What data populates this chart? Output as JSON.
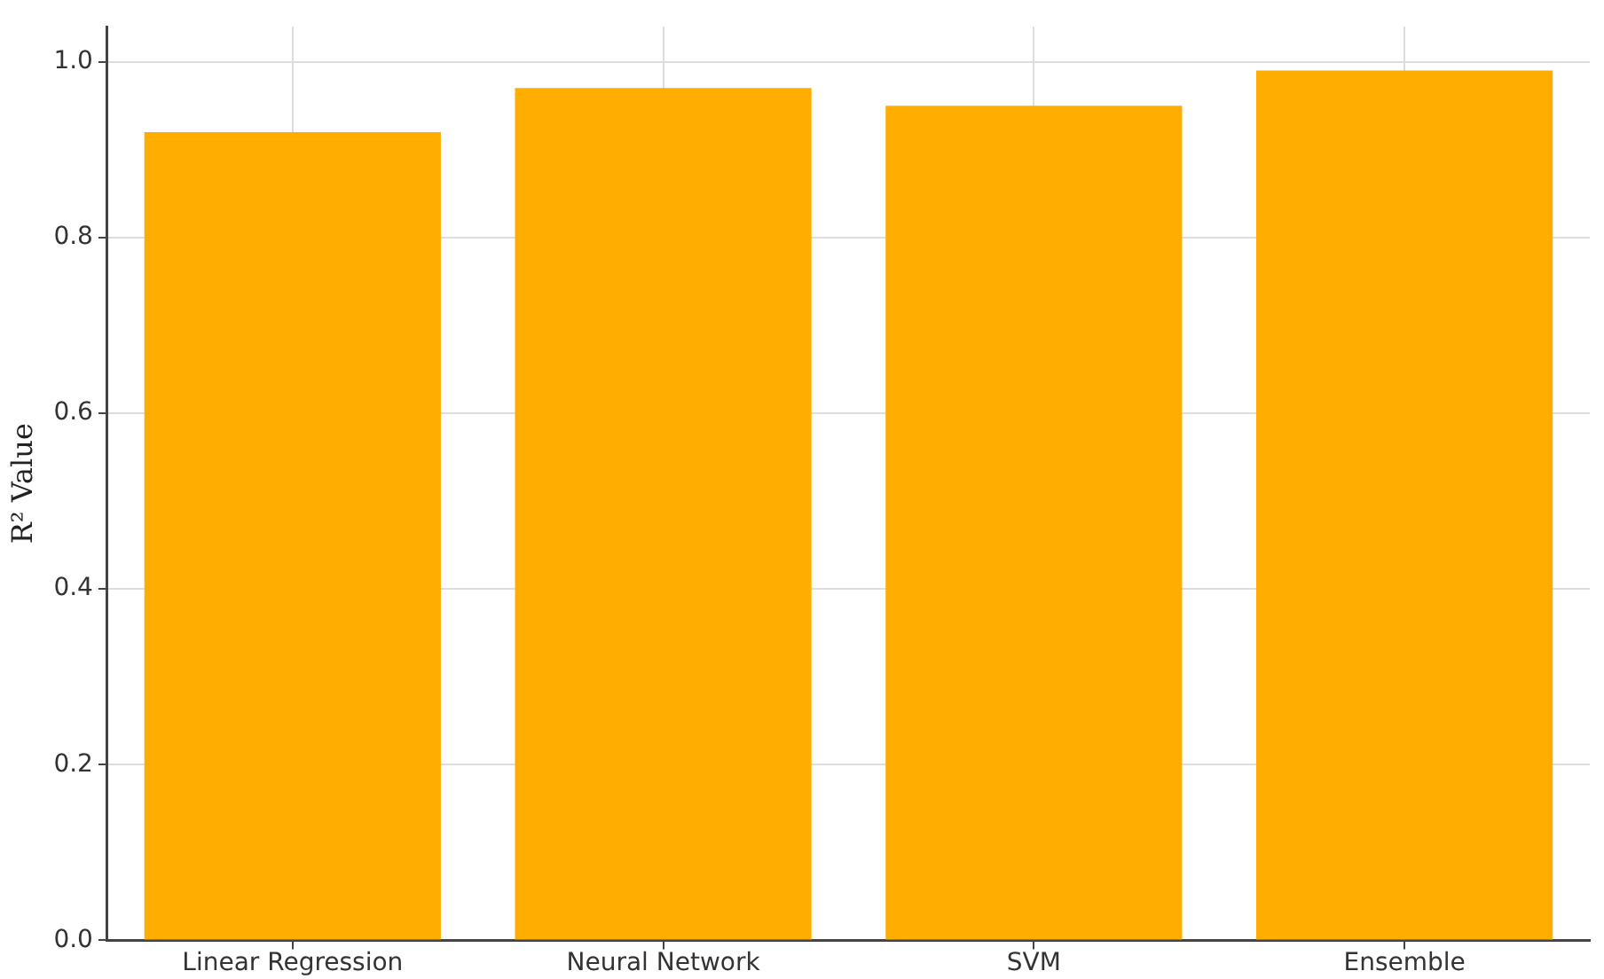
{
  "chart_data": {
    "type": "bar",
    "ylabel": "R² Value",
    "categories": [
      "Linear Regression",
      "Neural Network",
      "SVM",
      "Ensemble"
    ],
    "values": [
      0.92,
      0.97,
      0.95,
      0.99
    ],
    "color": "#ffae00",
    "ylim": [
      0,
      1.04
    ],
    "yticks": [
      {
        "value": 0,
        "label": "0.0"
      },
      {
        "value": 0.2,
        "label": "0.2"
      },
      {
        "value": 0.4,
        "label": "0.4"
      },
      {
        "value": 0.6,
        "label": "0.6"
      },
      {
        "value": 0.8,
        "label": "0.8"
      },
      {
        "value": 1,
        "label": "1.0"
      }
    ],
    "grid": true
  }
}
